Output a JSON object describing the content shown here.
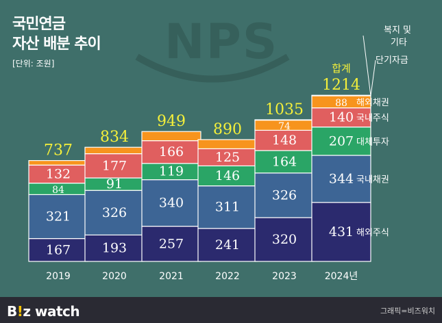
{
  "header": {
    "title_line1": "국민연금",
    "title_line2": "자산 배분 추이",
    "unit": "[단위: 조원]"
  },
  "watermark": "NPS",
  "footer": {
    "logo_a": "B",
    "logo_b": "!",
    "logo_c": "z watch",
    "credit": "그래픽=비즈워치"
  },
  "chart_data": {
    "type": "bar",
    "stacked": true,
    "categories": [
      "2019",
      "2020",
      "2021",
      "2022",
      "2023",
      "2024년"
    ],
    "series": [
      {
        "name": "해외주식",
        "color": "#2b2a6e",
        "values": [
          167,
          193,
          257,
          241,
          320,
          431
        ]
      },
      {
        "name": "국내채권",
        "color": "#3d6595",
        "values": [
          321,
          326,
          340,
          311,
          326,
          344
        ]
      },
      {
        "name": "대체투자",
        "color": "#2aa566",
        "values": [
          84,
          91,
          119,
          146,
          164,
          207
        ]
      },
      {
        "name": "국내주식",
        "color": "#e05f5f",
        "values": [
          132,
          177,
          166,
          125,
          148,
          140
        ]
      },
      {
        "name": "해외채권",
        "color": "#f7941d",
        "values": [
          33,
          47,
          67,
          67,
          74,
          88
        ]
      },
      {
        "name": "복지 및\n기타",
        "color": "#f7941d",
        "values": [
          0,
          0,
          0,
          0,
          3,
          4
        ]
      }
    ],
    "totals": [
      737,
      834,
      949,
      890,
      1035,
      1214
    ],
    "total_label": "합계",
    "shown_labels": {
      "해외주식": [
        167,
        193,
        257,
        241,
        320,
        431
      ],
      "국내채권": [
        321,
        326,
        340,
        311,
        326,
        344
      ],
      "대체투자": [
        84,
        91,
        119,
        146,
        164,
        207
      ],
      "국내주식": [
        132,
        177,
        166,
        125,
        148,
        140
      ],
      "해외채권": [
        null,
        null,
        null,
        null,
        74,
        88
      ]
    },
    "legend_position": "right",
    "grid": false
  }
}
